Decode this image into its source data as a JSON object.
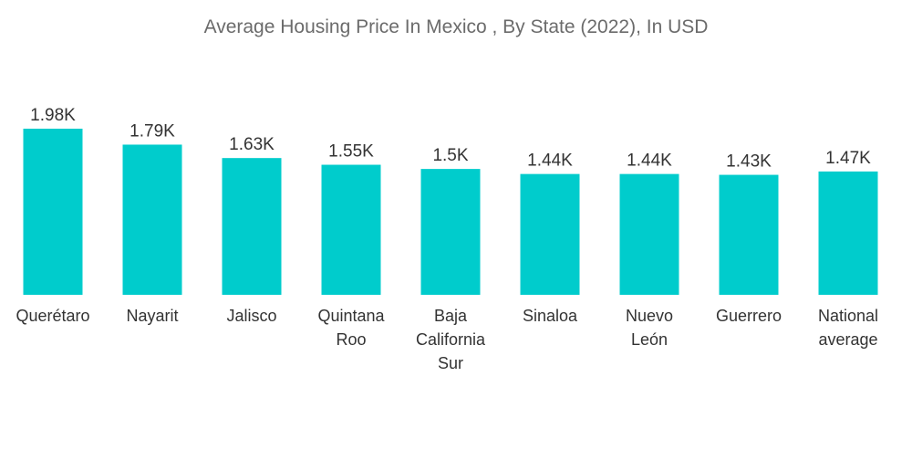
{
  "chart_data": {
    "type": "bar",
    "title": "Average Housing Price In Mexico , By State (2022), In USD",
    "xlabel": "",
    "ylabel": "",
    "ylim": [
      0,
      1980
    ],
    "grid": false,
    "bar_color": "#00cccc",
    "categories": [
      [
        "Querétaro"
      ],
      [
        "Nayarit"
      ],
      [
        "Jalisco"
      ],
      [
        "Quintana",
        "Roo"
      ],
      [
        "Baja",
        "California",
        "Sur"
      ],
      [
        "Sinaloa"
      ],
      [
        "Nuevo",
        "León"
      ],
      [
        "Guerrero"
      ],
      [
        "National",
        "average"
      ]
    ],
    "values": [
      1980,
      1790,
      1630,
      1550,
      1500,
      1440,
      1440,
      1430,
      1470
    ],
    "value_labels": [
      "1.98K",
      "1.79K",
      "1.63K",
      "1.55K",
      "1.5K",
      "1.44K",
      "1.44K",
      "1.43K",
      "1.47K"
    ]
  }
}
